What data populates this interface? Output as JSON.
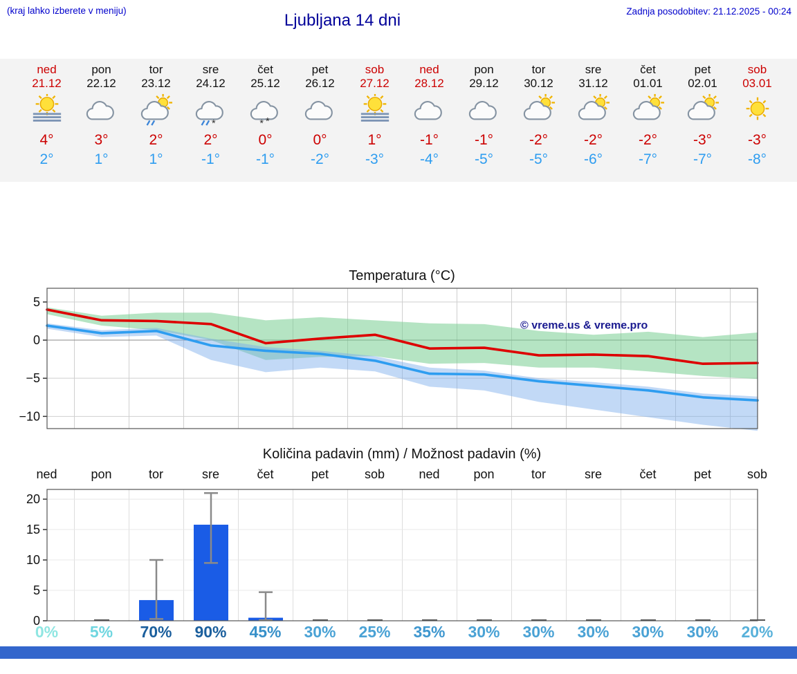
{
  "header": {
    "menu_hint": "(kraj lahko izberete v meniju)",
    "title": "Ljubljana 14 dni",
    "last_update": "Zadnja posodobitev: 21.12.2025 - 00:24"
  },
  "days": [
    {
      "name": "ned",
      "date": "21.12",
      "weekend": true,
      "icon": "sun-fog",
      "tmax": "4°",
      "tmin": "2°"
    },
    {
      "name": "pon",
      "date": "22.12",
      "weekend": false,
      "icon": "clouds",
      "tmax": "3°",
      "tmin": "1°"
    },
    {
      "name": "tor",
      "date": "23.12",
      "weekend": false,
      "icon": "sun-cloud-rain",
      "tmax": "2°",
      "tmin": "1°"
    },
    {
      "name": "sre",
      "date": "24.12",
      "weekend": false,
      "icon": "cloud-rain-snow",
      "tmax": "2°",
      "tmin": "-1°"
    },
    {
      "name": "čet",
      "date": "25.12",
      "weekend": false,
      "icon": "cloud-snow",
      "tmax": "0°",
      "tmin": "-1°"
    },
    {
      "name": "pet",
      "date": "26.12",
      "weekend": false,
      "icon": "clouds",
      "tmax": "0°",
      "tmin": "-2°"
    },
    {
      "name": "sob",
      "date": "27.12",
      "weekend": true,
      "icon": "sun-fog",
      "tmax": "1°",
      "tmin": "-3°"
    },
    {
      "name": "ned",
      "date": "28.12",
      "weekend": true,
      "icon": "clouds",
      "tmax": "-1°",
      "tmin": "-4°"
    },
    {
      "name": "pon",
      "date": "29.12",
      "weekend": false,
      "icon": "clouds",
      "tmax": "-1°",
      "tmin": "-5°"
    },
    {
      "name": "tor",
      "date": "30.12",
      "weekend": false,
      "icon": "sun-cloud",
      "tmax": "-2°",
      "tmin": "-5°"
    },
    {
      "name": "sre",
      "date": "31.12",
      "weekend": false,
      "icon": "sun-cloud",
      "tmax": "-2°",
      "tmin": "-6°"
    },
    {
      "name": "čet",
      "date": "01.01",
      "weekend": false,
      "icon": "sun-cloud",
      "tmax": "-2°",
      "tmin": "-7°"
    },
    {
      "name": "pet",
      "date": "02.01",
      "weekend": false,
      "icon": "sun-cloud",
      "tmax": "-3°",
      "tmin": "-7°"
    },
    {
      "name": "sob",
      "date": "03.01",
      "weekend": true,
      "icon": "sun",
      "tmax": "-3°",
      "tmin": "-8°"
    }
  ],
  "chart_data": [
    {
      "type": "line",
      "title": "Temperatura (°C)",
      "x_labels": [
        "ned 21.12",
        "pon 22.12",
        "tor 23.12",
        "sre 24.12",
        "čet 25.12",
        "pet 26.12",
        "sob 27.12",
        "ned 28.12",
        "pon 29.12",
        "tor 30.12",
        "sre 31.12",
        "čet 01.01",
        "pet 02.01",
        "sob 03.01"
      ],
      "series": [
        {
          "name": "max-temperature",
          "color": "#dd0000",
          "values": [
            4,
            2.6,
            2.5,
            2.1,
            -0.4,
            0.2,
            0.7,
            -1.1,
            -1.0,
            -2.0,
            -1.9,
            -2.1,
            -3.1,
            -3.0
          ]
        },
        {
          "name": "min-temperature",
          "color": "#2e9df0",
          "values": [
            1.9,
            0.9,
            1.2,
            -0.7,
            -1.4,
            -1.8,
            -2.7,
            -4.4,
            -4.5,
            -5.4,
            -6.0,
            -6.6,
            -7.5,
            -7.9
          ]
        }
      ],
      "bands": [
        {
          "name": "max-temperature-range",
          "color": "rgba(120,205,145,0.55)",
          "hi": [
            4.3,
            3.2,
            3.6,
            3.6,
            2.6,
            3.0,
            2.6,
            2.2,
            2.1,
            1.2,
            0.7,
            1.1,
            0.4,
            1.0
          ],
          "lo": [
            3.4,
            1.9,
            1.3,
            0.0,
            -2.6,
            -2.2,
            -2.1,
            -3.1,
            -3.0,
            -3.6,
            -3.6,
            -4.1,
            -4.7,
            -5.1
          ]
        },
        {
          "name": "min-temperature-range",
          "color": "rgba(120,170,235,0.45)",
          "hi": [
            2.2,
            1.3,
            1.6,
            0.2,
            -0.9,
            -1.4,
            -2.1,
            -3.6,
            -4.0,
            -5.0,
            -5.5,
            -6.1,
            -7.0,
            -7.4
          ],
          "lo": [
            1.5,
            0.4,
            0.6,
            -2.6,
            -4.2,
            -3.6,
            -4.1,
            -6.1,
            -6.6,
            -8.1,
            -9.1,
            -10.1,
            -11.1,
            -11.9
          ]
        }
      ],
      "ylim": [
        -11.6,
        6.8
      ],
      "yticks": [
        5,
        0,
        -5,
        -10
      ],
      "grid": true,
      "watermark": "© vreme.us & vreme.pro"
    },
    {
      "type": "bar",
      "title": "Količina padavin (mm) / Možnost padavin (%)",
      "categories": [
        "ned",
        "pon",
        "tor",
        "sre",
        "čet",
        "pet",
        "sob",
        "ned",
        "pon",
        "tor",
        "sre",
        "čet",
        "pet",
        "sob"
      ],
      "values": [
        0,
        0.1,
        3.4,
        15.8,
        0.5,
        0.1,
        0.1,
        0.1,
        0.1,
        0.1,
        0.1,
        0.1,
        0.1,
        0.1
      ],
      "error_lo": [
        null,
        null,
        0.3,
        9.5,
        0.1,
        null,
        null,
        null,
        null,
        null,
        null,
        null,
        null,
        null
      ],
      "error_hi": [
        null,
        null,
        10,
        21,
        4.7,
        null,
        null,
        null,
        null,
        null,
        null,
        null,
        null,
        null
      ],
      "bar_color": "#1a5ce6",
      "ylim": [
        0,
        21.6
      ],
      "yticks": [
        0,
        5,
        10,
        15,
        20
      ],
      "grid": true,
      "probabilities": [
        {
          "label": "0%",
          "color": "#8fe6e2"
        },
        {
          "label": "5%",
          "color": "#6fd6e0"
        },
        {
          "label": "70%",
          "color": "#1b5f9d"
        },
        {
          "label": "90%",
          "color": "#1b5f9d"
        },
        {
          "label": "45%",
          "color": "#3790c9"
        },
        {
          "label": "30%",
          "color": "#4aa2d5"
        },
        {
          "label": "25%",
          "color": "#4aa2d5"
        },
        {
          "label": "35%",
          "color": "#3f97cf"
        },
        {
          "label": "30%",
          "color": "#4aa2d5"
        },
        {
          "label": "30%",
          "color": "#4aa2d5"
        },
        {
          "label": "30%",
          "color": "#4aa2d5"
        },
        {
          "label": "30%",
          "color": "#4aa2d5"
        },
        {
          "label": "30%",
          "color": "#4aa2d5"
        },
        {
          "label": "20%",
          "color": "#58b1da"
        }
      ]
    }
  ],
  "colors": {
    "accent_red": "#cc0000",
    "accent_blue": "#2e9df0",
    "header_blue": "#0000cc",
    "title_blue": "#000099",
    "footer_blue": "#3366cc",
    "strip_bg": "#f3f3f3"
  }
}
